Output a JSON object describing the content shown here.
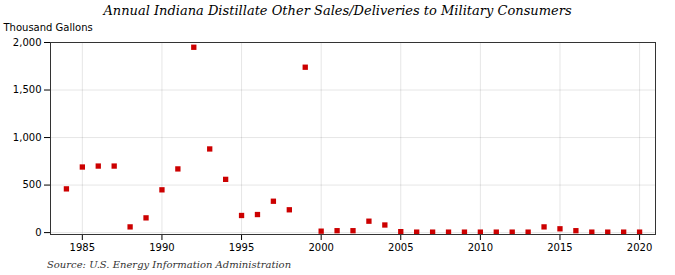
{
  "chart_data": {
    "type": "scatter",
    "title": "Annual Indiana Distillate Other Sales/Deliveries to Military Consumers",
    "ylabel": "Thousand Gallons",
    "caption": "Source: U.S. Energy Information Administration",
    "color": "#cc0000",
    "marker": "square",
    "grid": true,
    "x": [
      1984,
      1985,
      1986,
      1987,
      1988,
      1989,
      1990,
      1991,
      1992,
      1993,
      1994,
      1995,
      1996,
      1997,
      1998,
      1999,
      2000,
      2001,
      2002,
      2003,
      2004,
      2005,
      2006,
      2007,
      2008,
      2009,
      2010,
      2011,
      2012,
      2013,
      2014,
      2015,
      2016,
      2017,
      2018,
      2019,
      2020
    ],
    "values": [
      460,
      690,
      700,
      700,
      60,
      155,
      450,
      670,
      1950,
      880,
      560,
      180,
      190,
      330,
      240,
      1740,
      15,
      20,
      20,
      120,
      80,
      10,
      5,
      5,
      5,
      5,
      5,
      5,
      5,
      5,
      60,
      40,
      20,
      5,
      5,
      5,
      5
    ],
    "xlim": [
      1983,
      2021
    ],
    "xticks": [
      1985,
      1990,
      1995,
      2000,
      2005,
      2010,
      2015,
      2020
    ],
    "ylim": [
      -20,
      2000
    ],
    "yticks": [
      0,
      500,
      {
        "value": 1000,
        "label": "1,000"
      },
      {
        "value": 1500,
        "label": "1,500"
      },
      {
        "value": 2000,
        "label": "2,000"
      }
    ]
  }
}
